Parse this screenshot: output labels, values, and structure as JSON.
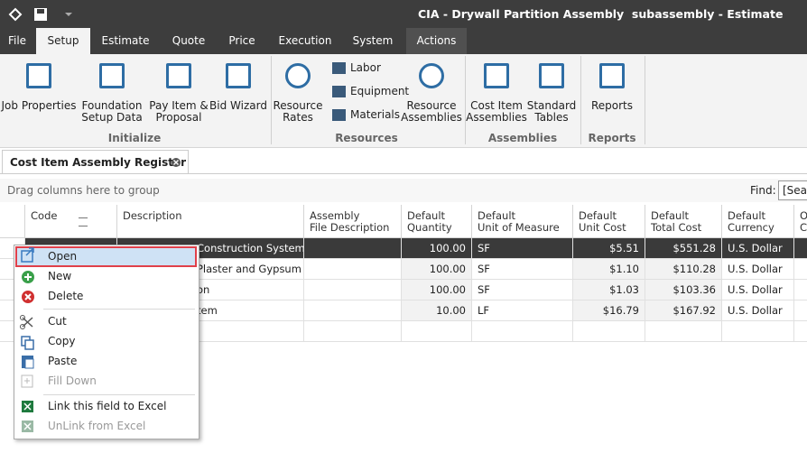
{
  "title_bar": {
    "title": "CIA - Drywall Partition Assembly  subassembly - Estimate"
  },
  "menu_tabs": [
    "File",
    "Setup",
    "Estimate",
    "Quote",
    "Price",
    "Execution",
    "System",
    "Actions"
  ],
  "ribbon": {
    "groups": [
      {
        "label": "Initialize",
        "buttons": [
          "Job Properties",
          "Foundation\nSetup Data",
          "Pay Item &\nProposal",
          "Bid Wizard"
        ]
      },
      {
        "label": "Resources",
        "buttons": [
          "Resource\nRates",
          "Labor",
          "Equipment",
          "Materials",
          "Resource\nAssemblies"
        ]
      },
      {
        "label": "Assemblies",
        "buttons": [
          "Cost Item\nAssemblies",
          "Standard\nTables"
        ]
      },
      {
        "label": "Reports",
        "buttons": [
          "Reports"
        ]
      }
    ]
  },
  "document_tab": "Cost Item Assembly Register",
  "group_bar": {
    "hint": "Drag columns here to group",
    "find_label": "Find:",
    "search": "[Sear"
  },
  "grid": {
    "headers": [
      "Code",
      "Description",
      "Assembly\nFile Description",
      "Default\nQuantity",
      "Default\nUnit of Measure",
      "Default\nUnit Cost",
      "Default\nTotal Cost",
      "Default\nCurrency",
      "O\nC"
    ],
    "rows": [
      {
        "description": "Construction System",
        "quantity": "100.00",
        "unit": "SF",
        "unit_cost": "$5.51",
        "total_cost": "$551.28",
        "currency": "U.S. Dollar"
      },
      {
        "description": "Plaster and Gypsum ...",
        "quantity": "100.00",
        "unit": "SF",
        "unit_cost": "$1.10",
        "total_cost": "$110.28",
        "currency": "U.S. Dollar"
      },
      {
        "description": "on",
        "quantity": "100.00",
        "unit": "SF",
        "unit_cost": "$1.03",
        "total_cost": "$103.36",
        "currency": "U.S. Dollar"
      },
      {
        "description": "tem",
        "quantity": "10.00",
        "unit": "LF",
        "unit_cost": "$16.79",
        "total_cost": "$167.92",
        "currency": "U.S. Dollar"
      }
    ]
  },
  "context_menu": {
    "items": [
      "Open",
      "New",
      "Delete",
      "Cut",
      "Copy",
      "Paste",
      "Fill Down",
      "Link this field to Excel",
      "UnLink from Excel"
    ]
  }
}
